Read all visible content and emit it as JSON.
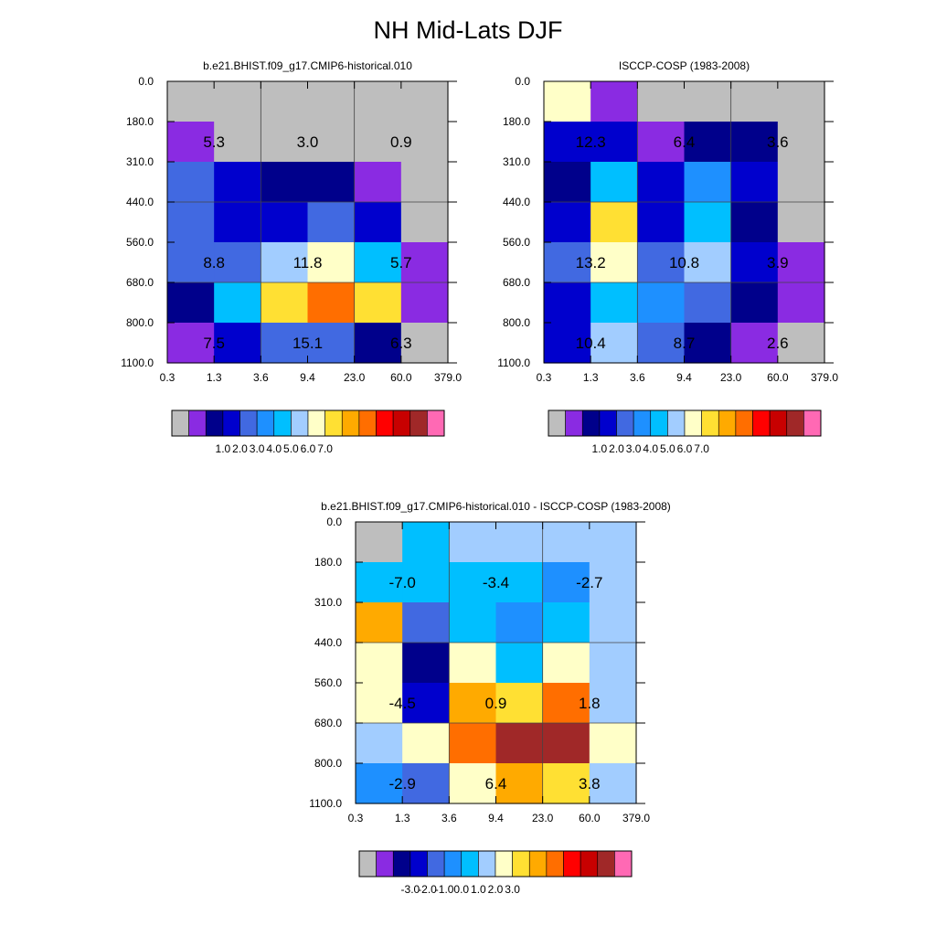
{
  "title": "NH Mid-Lats DJF",
  "x_ticks": [
    "0.3",
    "1.3",
    "3.6",
    "9.4",
    "23.0",
    "60.0",
    "379.0"
  ],
  "y_ticks": [
    "0.0",
    "180.0",
    "310.0",
    "440.0",
    "560.0",
    "680.0",
    "800.0",
    "1100.0"
  ],
  "legend_colors": [
    "#bebebe",
    "#8a2be2",
    "#00008b",
    "#0000cd",
    "#4169e1",
    "#1e90ff",
    "#00bfff",
    "#a2cdff",
    "#ffffc8",
    "#ffe033",
    "#ffaa00",
    "#ff6e00",
    "#ff0000",
    "#c80000",
    "#a02828",
    "#ff69b4"
  ],
  "chart_data": [
    {
      "type": "heatmap",
      "title": "b.e21.BHIST.f09_g17.CMIP6-historical.010",
      "legend_labels": [
        "1.0",
        "2.0",
        "3.0",
        "4.0",
        "5.0",
        "6.0",
        "7.0"
      ],
      "cell_color_index": [
        [
          0,
          0,
          0,
          0,
          0,
          0
        ],
        [
          1,
          0,
          0,
          0,
          0,
          0
        ],
        [
          4,
          3,
          2,
          2,
          1,
          0
        ],
        [
          4,
          3,
          3,
          4,
          3,
          0
        ],
        [
          4,
          4,
          7,
          8,
          6,
          1
        ],
        [
          2,
          6,
          9,
          11,
          9,
          1
        ],
        [
          1,
          3,
          4,
          4,
          2,
          0
        ]
      ],
      "annotations": [
        {
          "row": 1,
          "col": 1,
          "text": "5.3"
        },
        {
          "row": 1,
          "col": 3,
          "text": "3.0"
        },
        {
          "row": 1,
          "col": 5,
          "text": "0.9"
        },
        {
          "row": 4,
          "col": 1,
          "text": "8.8"
        },
        {
          "row": 4,
          "col": 3,
          "text": "11.8"
        },
        {
          "row": 4,
          "col": 5,
          "text": "5.7"
        },
        {
          "row": 6,
          "col": 1,
          "text": "7.5"
        },
        {
          "row": 6,
          "col": 3,
          "text": "15.1"
        },
        {
          "row": 6,
          "col": 5,
          "text": "6.3"
        }
      ]
    },
    {
      "type": "heatmap",
      "title": "ISCCP-COSP (1983-2008)",
      "legend_labels": [
        "1.0",
        "2.0",
        "3.0",
        "4.0",
        "5.0",
        "6.0",
        "7.0"
      ],
      "cell_color_index": [
        [
          8,
          1,
          0,
          0,
          0,
          0
        ],
        [
          3,
          3,
          1,
          2,
          2,
          0
        ],
        [
          2,
          6,
          3,
          5,
          3,
          0
        ],
        [
          3,
          9,
          3,
          6,
          2,
          0
        ],
        [
          4,
          8,
          4,
          7,
          3,
          1
        ],
        [
          3,
          6,
          5,
          4,
          2,
          1
        ],
        [
          3,
          7,
          4,
          2,
          1,
          0
        ]
      ],
      "annotations": [
        {
          "row": 1,
          "col": 1,
          "text": "12.3"
        },
        {
          "row": 1,
          "col": 3,
          "text": "6.4"
        },
        {
          "row": 1,
          "col": 5,
          "text": "3.6"
        },
        {
          "row": 4,
          "col": 1,
          "text": "13.2"
        },
        {
          "row": 4,
          "col": 3,
          "text": "10.8"
        },
        {
          "row": 4,
          "col": 5,
          "text": "3.9"
        },
        {
          "row": 6,
          "col": 1,
          "text": "10.4"
        },
        {
          "row": 6,
          "col": 3,
          "text": "8.7"
        },
        {
          "row": 6,
          "col": 5,
          "text": "2.6"
        }
      ]
    },
    {
      "type": "heatmap",
      "title": "b.e21.BHIST.f09_g17.CMIP6-historical.010 - ISCCP-COSP (1983-2008)",
      "legend_labels": [
        "-3.0",
        "-2.0",
        "-1.0",
        "0.0",
        "1.0",
        "2.0",
        "3.0"
      ],
      "cell_color_index": [
        [
          0,
          6,
          7,
          7,
          7,
          7
        ],
        [
          6,
          6,
          6,
          6,
          5,
          7
        ],
        [
          10,
          4,
          6,
          5,
          6,
          7
        ],
        [
          8,
          2,
          8,
          6,
          8,
          7
        ],
        [
          8,
          3,
          10,
          9,
          11,
          7
        ],
        [
          7,
          8,
          11,
          14,
          14,
          8
        ],
        [
          5,
          4,
          8,
          10,
          9,
          7
        ]
      ],
      "annotations": [
        {
          "row": 1,
          "col": 1,
          "text": "-7.0"
        },
        {
          "row": 1,
          "col": 3,
          "text": "-3.4"
        },
        {
          "row": 1,
          "col": 5,
          "text": "-2.7"
        },
        {
          "row": 4,
          "col": 1,
          "text": "-4.5"
        },
        {
          "row": 4,
          "col": 3,
          "text": "0.9"
        },
        {
          "row": 4,
          "col": 5,
          "text": "1.8"
        },
        {
          "row": 6,
          "col": 1,
          "text": "-2.9"
        },
        {
          "row": 6,
          "col": 3,
          "text": "6.4"
        },
        {
          "row": 6,
          "col": 5,
          "text": "3.8"
        }
      ]
    }
  ]
}
